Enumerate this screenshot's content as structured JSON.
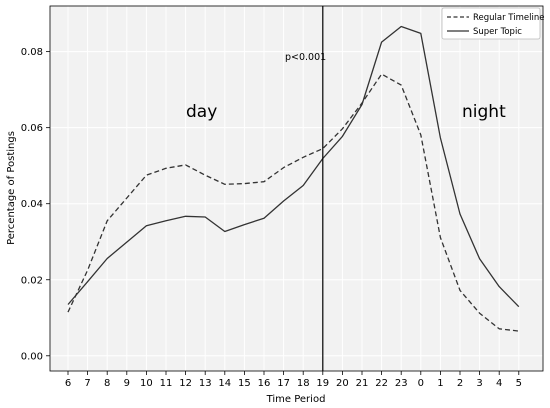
{
  "chart_data": {
    "type": "line",
    "xlabel": "Time Period",
    "ylabel": "Percentage of Postings",
    "categories": [
      "6",
      "7",
      "8",
      "9",
      "10",
      "11",
      "12",
      "13",
      "14",
      "15",
      "16",
      "17",
      "18",
      "19",
      "20",
      "21",
      "22",
      "23",
      "0",
      "1",
      "2",
      "3",
      "4",
      "5"
    ],
    "yticks": [
      "0.00",
      "0.02",
      "0.04",
      "0.06",
      "0.08"
    ],
    "ylim": [
      -0.004,
      0.092
    ],
    "grid": true,
    "legend_position": "top-right",
    "series": [
      {
        "name": "Regular Timeline",
        "style": "dashed",
        "color": "#333333",
        "values": [
          0.0115,
          0.0225,
          0.0355,
          0.0415,
          0.0475,
          0.0493,
          0.0502,
          0.0475,
          0.0451,
          0.0453,
          0.0458,
          0.0495,
          0.0522,
          0.0545,
          0.0597,
          0.0665,
          0.0741,
          0.0712,
          0.0581,
          0.0311,
          0.0172,
          0.0112,
          0.0071,
          0.0065
        ]
      },
      {
        "name": "Super Topic",
        "style": "solid",
        "color": "#333333",
        "values": [
          0.0135,
          0.0195,
          0.0256,
          0.0299,
          0.0342,
          0.0355,
          0.0367,
          0.0365,
          0.0327,
          0.0345,
          0.0362,
          0.0407,
          0.0448,
          0.0519,
          0.0577,
          0.0661,
          0.0825,
          0.0866,
          0.0848,
          0.0573,
          0.0373,
          0.0255,
          0.0182,
          0.0129
        ]
      }
    ],
    "vline_at": "19",
    "annotations": {
      "pvalue": "p<0.001",
      "left_region": "day",
      "right_region": "night"
    }
  }
}
